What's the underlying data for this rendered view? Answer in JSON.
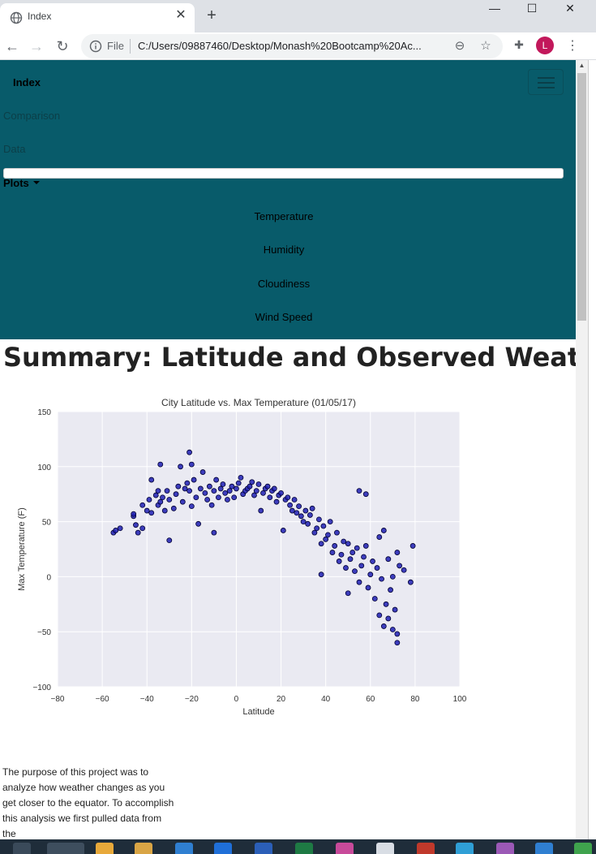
{
  "browser": {
    "tab_title": "Index",
    "tab_close": "✕",
    "new_tab": "+",
    "window_controls": {
      "minimize": "—",
      "maximize": "☐",
      "close": "✕"
    },
    "nav": {
      "back": "←",
      "forward": "→",
      "reload": "↻"
    },
    "omnibox": {
      "scheme_label": "File",
      "url": "C:/Users/09887460/Desktop/Monash%20Bootcamp%20Ac..."
    },
    "profile_initial": "L"
  },
  "navbar": {
    "brand": "Index",
    "links": [
      "Comparison",
      "Data"
    ],
    "dropdown": {
      "label": "Plots",
      "items": [
        "Temperature",
        "Humidity",
        "Cloudiness",
        "Wind Speed"
      ]
    }
  },
  "page": {
    "title": "Summary: Latitude and Observed Weather",
    "paragraph": "The purpose of this project was to analyze how weather changes as you get closer to the equator. To accomplish this analysis we first pulled data from the"
  },
  "colors": {
    "navbar_bg": "#085b6a",
    "plot_bg": "#eaeaf2",
    "marker_fill": "#1f1fb4",
    "marker_edge": "#000033"
  },
  "chart_data": {
    "type": "scatter",
    "title": "City Latitude vs. Max Temperature (01/05/17)",
    "xlabel": "Latitude",
    "ylabel": "Max Temperature (F)",
    "xlim": [
      -80,
      100
    ],
    "ylim": [
      -100,
      150
    ],
    "xticks": [
      -80,
      -60,
      -40,
      -20,
      0,
      20,
      40,
      60,
      80,
      100
    ],
    "yticks": [
      -100,
      -50,
      0,
      50,
      100,
      150
    ],
    "grid": true,
    "legend": "none",
    "series": [
      {
        "points": [
          [
            -55,
            40
          ],
          [
            -54,
            42
          ],
          [
            -52,
            44
          ],
          [
            -46,
            55
          ],
          [
            -46,
            57
          ],
          [
            -45,
            47
          ],
          [
            -44,
            40
          ],
          [
            -42,
            65
          ],
          [
            -42,
            44
          ],
          [
            -40,
            60
          ],
          [
            -39,
            70
          ],
          [
            -38,
            58
          ],
          [
            -38,
            88
          ],
          [
            -36,
            74
          ],
          [
            -35,
            65
          ],
          [
            -35,
            78
          ],
          [
            -34,
            102
          ],
          [
            -34,
            68
          ],
          [
            -33,
            72
          ],
          [
            -32,
            60
          ],
          [
            -31,
            78
          ],
          [
            -30,
            33
          ],
          [
            -30,
            70
          ],
          [
            -28,
            62
          ],
          [
            -27,
            75
          ],
          [
            -26,
            82
          ],
          [
            -25,
            100
          ],
          [
            -24,
            68
          ],
          [
            -23,
            80
          ],
          [
            -22,
            85
          ],
          [
            -21,
            113
          ],
          [
            -21,
            78
          ],
          [
            -20,
            102
          ],
          [
            -20,
            64
          ],
          [
            -19,
            88
          ],
          [
            -18,
            72
          ],
          [
            -17,
            48
          ],
          [
            -16,
            80
          ],
          [
            -15,
            95
          ],
          [
            -14,
            76
          ],
          [
            -13,
            70
          ],
          [
            -12,
            82
          ],
          [
            -11,
            65
          ],
          [
            -10,
            40
          ],
          [
            -10,
            78
          ],
          [
            -9,
            88
          ],
          [
            -8,
            72
          ],
          [
            -7,
            80
          ],
          [
            -6,
            84
          ],
          [
            -5,
            76
          ],
          [
            -4,
            70
          ],
          [
            -3,
            78
          ],
          [
            -2,
            82
          ],
          [
            -1,
            72
          ],
          [
            0,
            80
          ],
          [
            1,
            85
          ],
          [
            2,
            90
          ],
          [
            3,
            75
          ],
          [
            4,
            78
          ],
          [
            5,
            80
          ],
          [
            6,
            82
          ],
          [
            7,
            86
          ],
          [
            8,
            74
          ],
          [
            9,
            78
          ],
          [
            10,
            84
          ],
          [
            11,
            60
          ],
          [
            12,
            76
          ],
          [
            13,
            80
          ],
          [
            14,
            82
          ],
          [
            15,
            72
          ],
          [
            16,
            78
          ],
          [
            17,
            80
          ],
          [
            18,
            68
          ],
          [
            19,
            74
          ],
          [
            20,
            76
          ],
          [
            21,
            42
          ],
          [
            22,
            70
          ],
          [
            23,
            72
          ],
          [
            24,
            65
          ],
          [
            25,
            60
          ],
          [
            26,
            70
          ],
          [
            27,
            58
          ],
          [
            28,
            64
          ],
          [
            29,
            55
          ],
          [
            30,
            50
          ],
          [
            31,
            60
          ],
          [
            32,
            48
          ],
          [
            33,
            56
          ],
          [
            34,
            62
          ],
          [
            35,
            40
          ],
          [
            36,
            44
          ],
          [
            37,
            52
          ],
          [
            38,
            2
          ],
          [
            38,
            30
          ],
          [
            39,
            46
          ],
          [
            40,
            34
          ],
          [
            41,
            38
          ],
          [
            42,
            50
          ],
          [
            43,
            22
          ],
          [
            44,
            28
          ],
          [
            45,
            40
          ],
          [
            46,
            14
          ],
          [
            47,
            20
          ],
          [
            48,
            32
          ],
          [
            49,
            8
          ],
          [
            50,
            -15
          ],
          [
            50,
            30
          ],
          [
            51,
            16
          ],
          [
            52,
            22
          ],
          [
            53,
            5
          ],
          [
            54,
            26
          ],
          [
            55,
            78
          ],
          [
            55,
            -5
          ],
          [
            56,
            10
          ],
          [
            57,
            18
          ],
          [
            58,
            75
          ],
          [
            58,
            28
          ],
          [
            59,
            -10
          ],
          [
            60,
            2
          ],
          [
            61,
            14
          ],
          [
            62,
            -20
          ],
          [
            63,
            8
          ],
          [
            64,
            -35
          ],
          [
            64,
            36
          ],
          [
            65,
            -2
          ],
          [
            66,
            42
          ],
          [
            66,
            -45
          ],
          [
            67,
            -25
          ],
          [
            68,
            16
          ],
          [
            68,
            -38
          ],
          [
            69,
            -12
          ],
          [
            70,
            0
          ],
          [
            70,
            -48
          ],
          [
            71,
            -30
          ],
          [
            72,
            22
          ],
          [
            72,
            -52
          ],
          [
            72,
            -60
          ],
          [
            73,
            10
          ],
          [
            75,
            6
          ],
          [
            78,
            -5
          ],
          [
            79,
            28
          ]
        ]
      }
    ]
  }
}
